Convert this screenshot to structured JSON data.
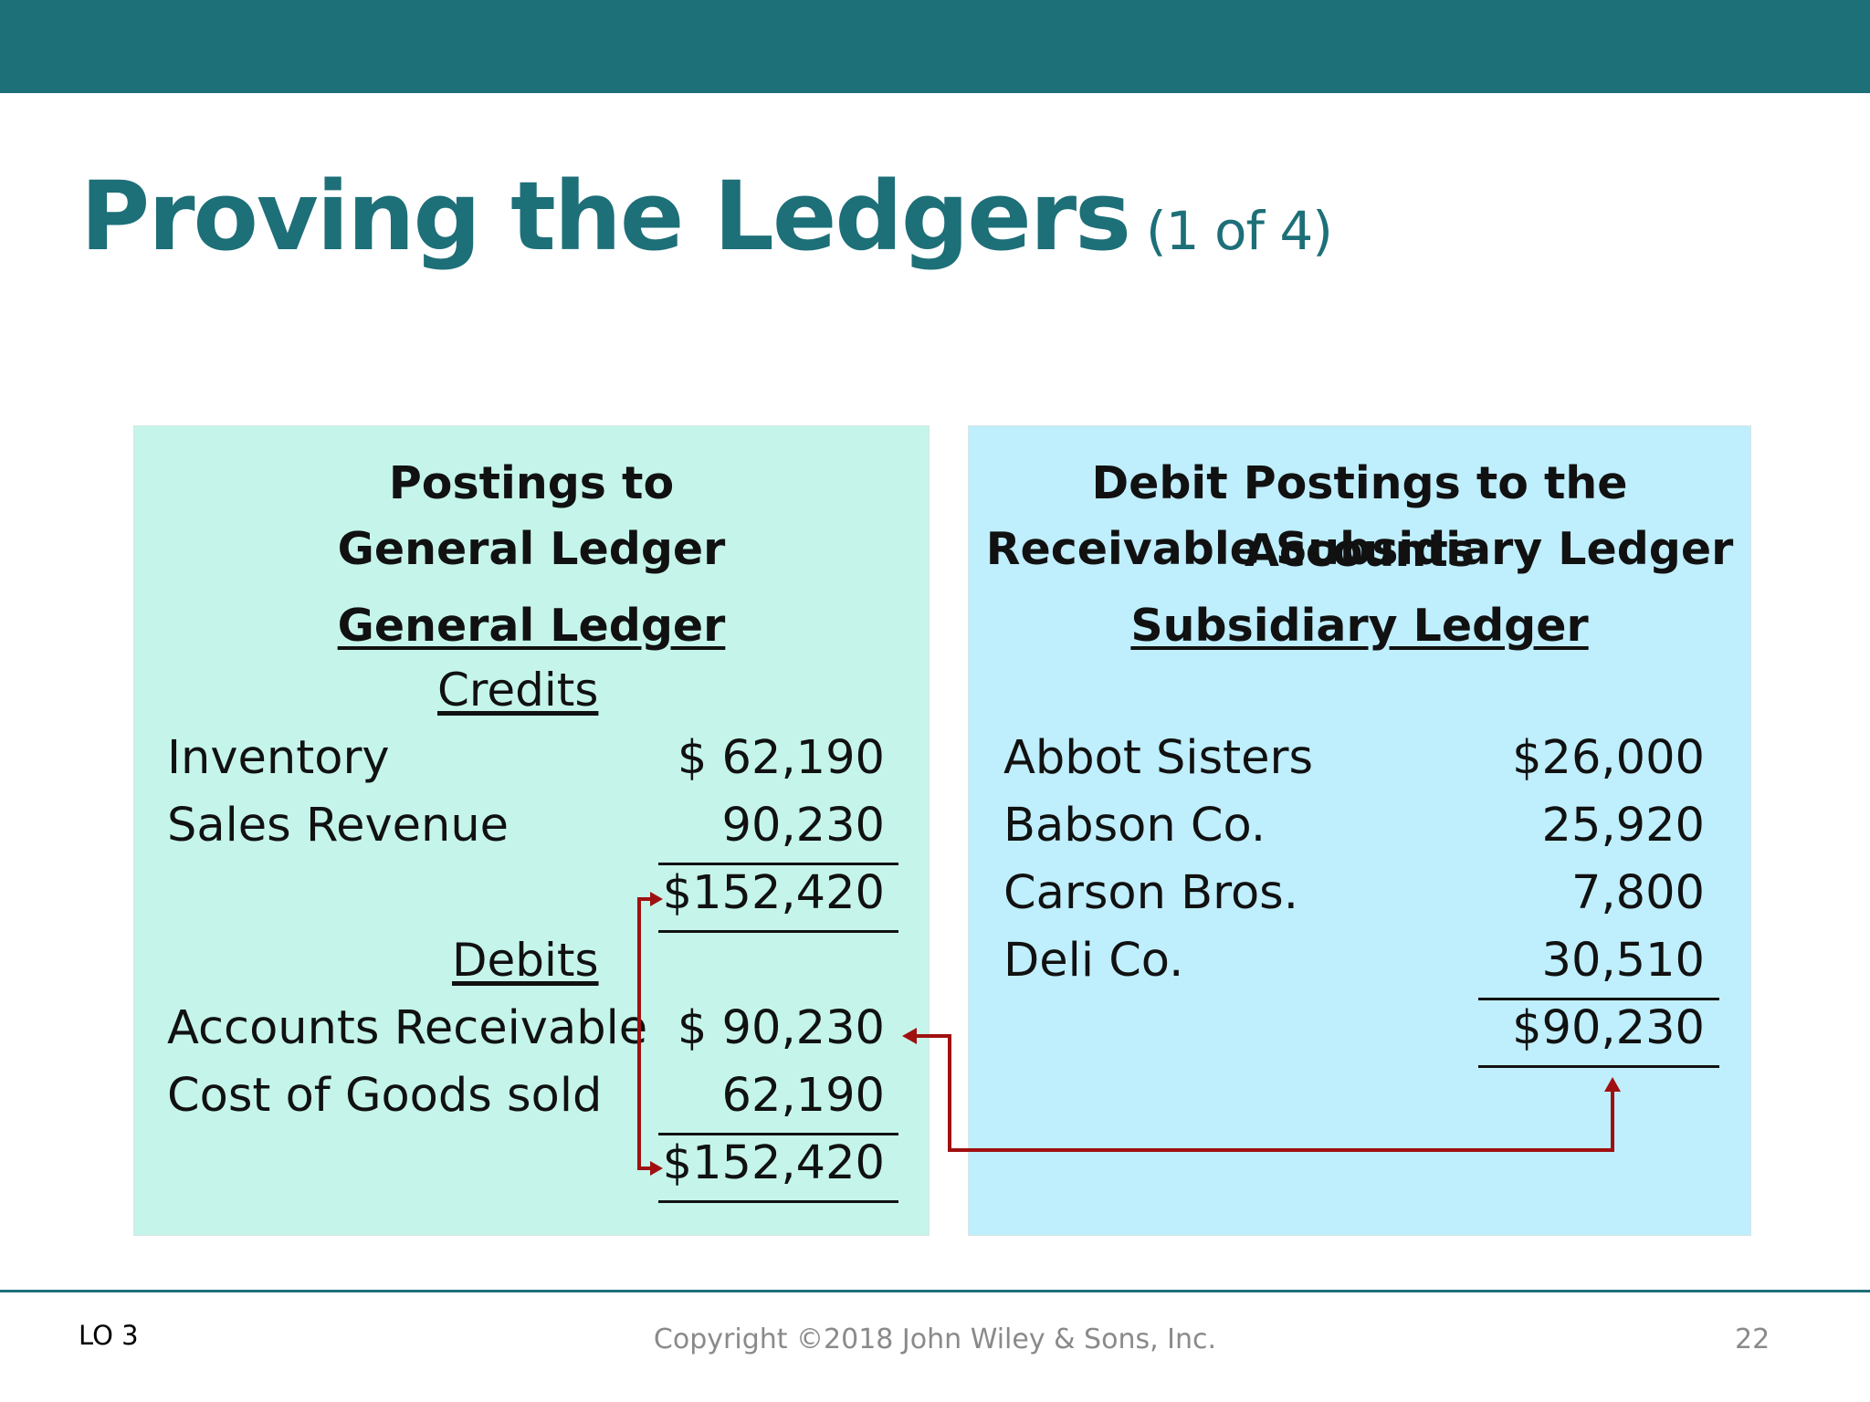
{
  "slide": {
    "title": "Proving the Ledgers",
    "title_sub": "(1 of 4)",
    "accent_color": "#1d6f78"
  },
  "general_ledger_panel": {
    "heading_line1": "Postings to",
    "heading_line2": "General Ledger",
    "ledger_title": "General Ledger",
    "credits_label": "Credits",
    "credits": [
      {
        "name": "Inventory",
        "amount": "$  62,190"
      },
      {
        "name": "Sales Revenue",
        "amount": "90,230"
      }
    ],
    "credits_total": "$152,420",
    "debits_label": "Debits",
    "debits": [
      {
        "name": "Accounts Receivable",
        "amount": "$  90,230"
      },
      {
        "name": "Cost of Goods sold",
        "amount": "62,190"
      }
    ],
    "debits_total": "$152,420",
    "background": "#c5f5ea"
  },
  "subsidiary_panel": {
    "heading_line1": "Debit Postings to the Accounts",
    "heading_line2": "Receivable Subsidiary Ledger",
    "ledger_title": "Subsidiary Ledger",
    "accounts": [
      {
        "name": "Abbot Sisters",
        "amount": "$26,000"
      },
      {
        "name": "Babson Co.",
        "amount": "25,920"
      },
      {
        "name": "Carson Bros.",
        "amount": "7,800"
      },
      {
        "name": "Deli Co.",
        "amount": "30,510"
      }
    ],
    "total": "$90,230",
    "background": "#bfeefc"
  },
  "arrow_color": "#a01010",
  "footer": {
    "left": "LO 3",
    "center": "Copyright ©2018 John Wiley & Sons, Inc.",
    "page_number": "22"
  }
}
